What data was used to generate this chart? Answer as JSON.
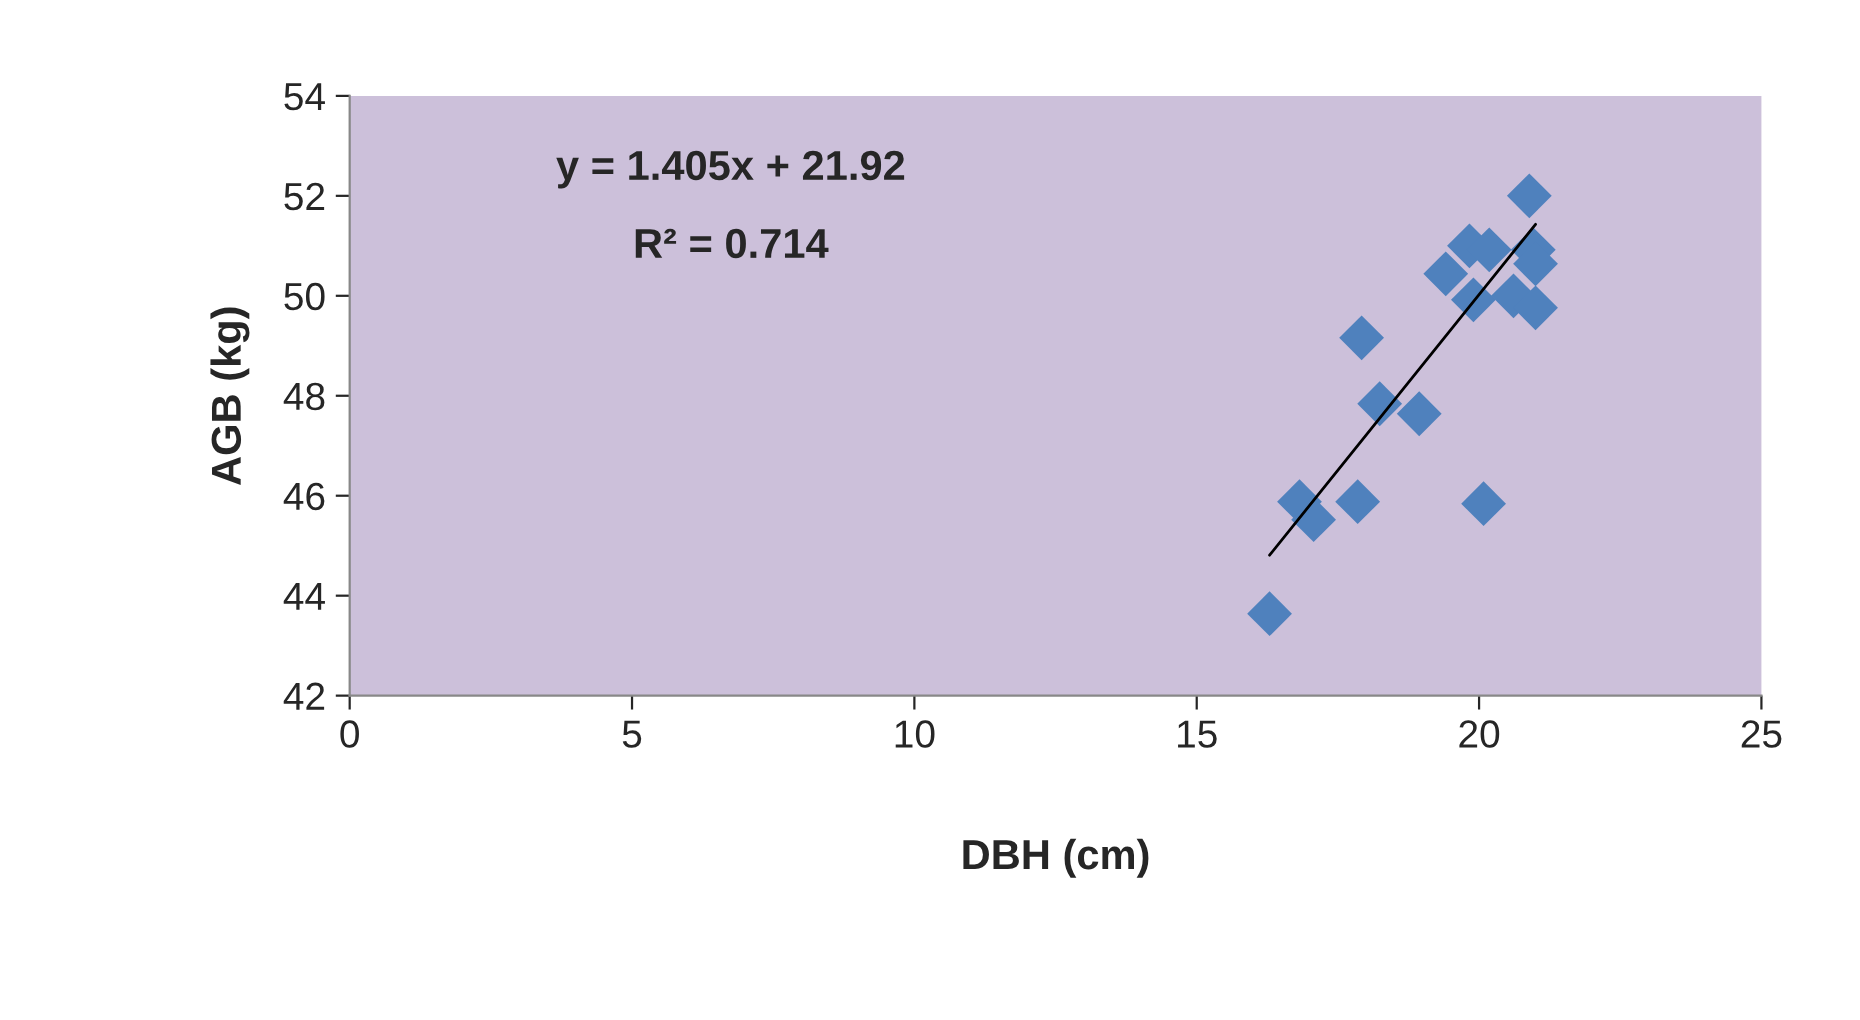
{
  "chart_data": {
    "type": "scatter",
    "xlabel": "DBH (cm)",
    "ylabel": "AGB (kg)",
    "annotations": [
      "y = 1.405x + 21.92",
      "R² = 0.714"
    ],
    "xlim": [
      0,
      25
    ],
    "xticks": [
      0,
      5,
      10,
      15,
      20,
      25
    ],
    "ylim": [
      42,
      54
    ],
    "yticks": [
      42,
      44,
      46,
      48,
      50,
      52,
      54
    ],
    "grid": false,
    "legend": false,
    "marker": "diamond",
    "series": [
      {
        "type": "scatter",
        "color": "#4f81bd",
        "x": [
          16.29,
          16.82,
          17.07,
          17.85,
          17.92,
          18.24,
          18.94,
          20.08,
          19.41,
          19.83,
          20.18,
          19.9,
          20.61,
          21.0,
          20.89,
          20.96,
          21.0
        ],
        "values": [
          43.64,
          45.88,
          45.52,
          45.88,
          49.16,
          47.84,
          47.64,
          45.84,
          50.44,
          51.0,
          50.92,
          49.92,
          50.0,
          49.76,
          52.0,
          50.92,
          50.64
        ]
      },
      {
        "type": "line",
        "color": "#000000",
        "marker": "none",
        "line_style": "solid",
        "x": [
          16.29,
          21.0
        ],
        "values": [
          44.81,
          51.43
        ]
      }
    ]
  }
}
